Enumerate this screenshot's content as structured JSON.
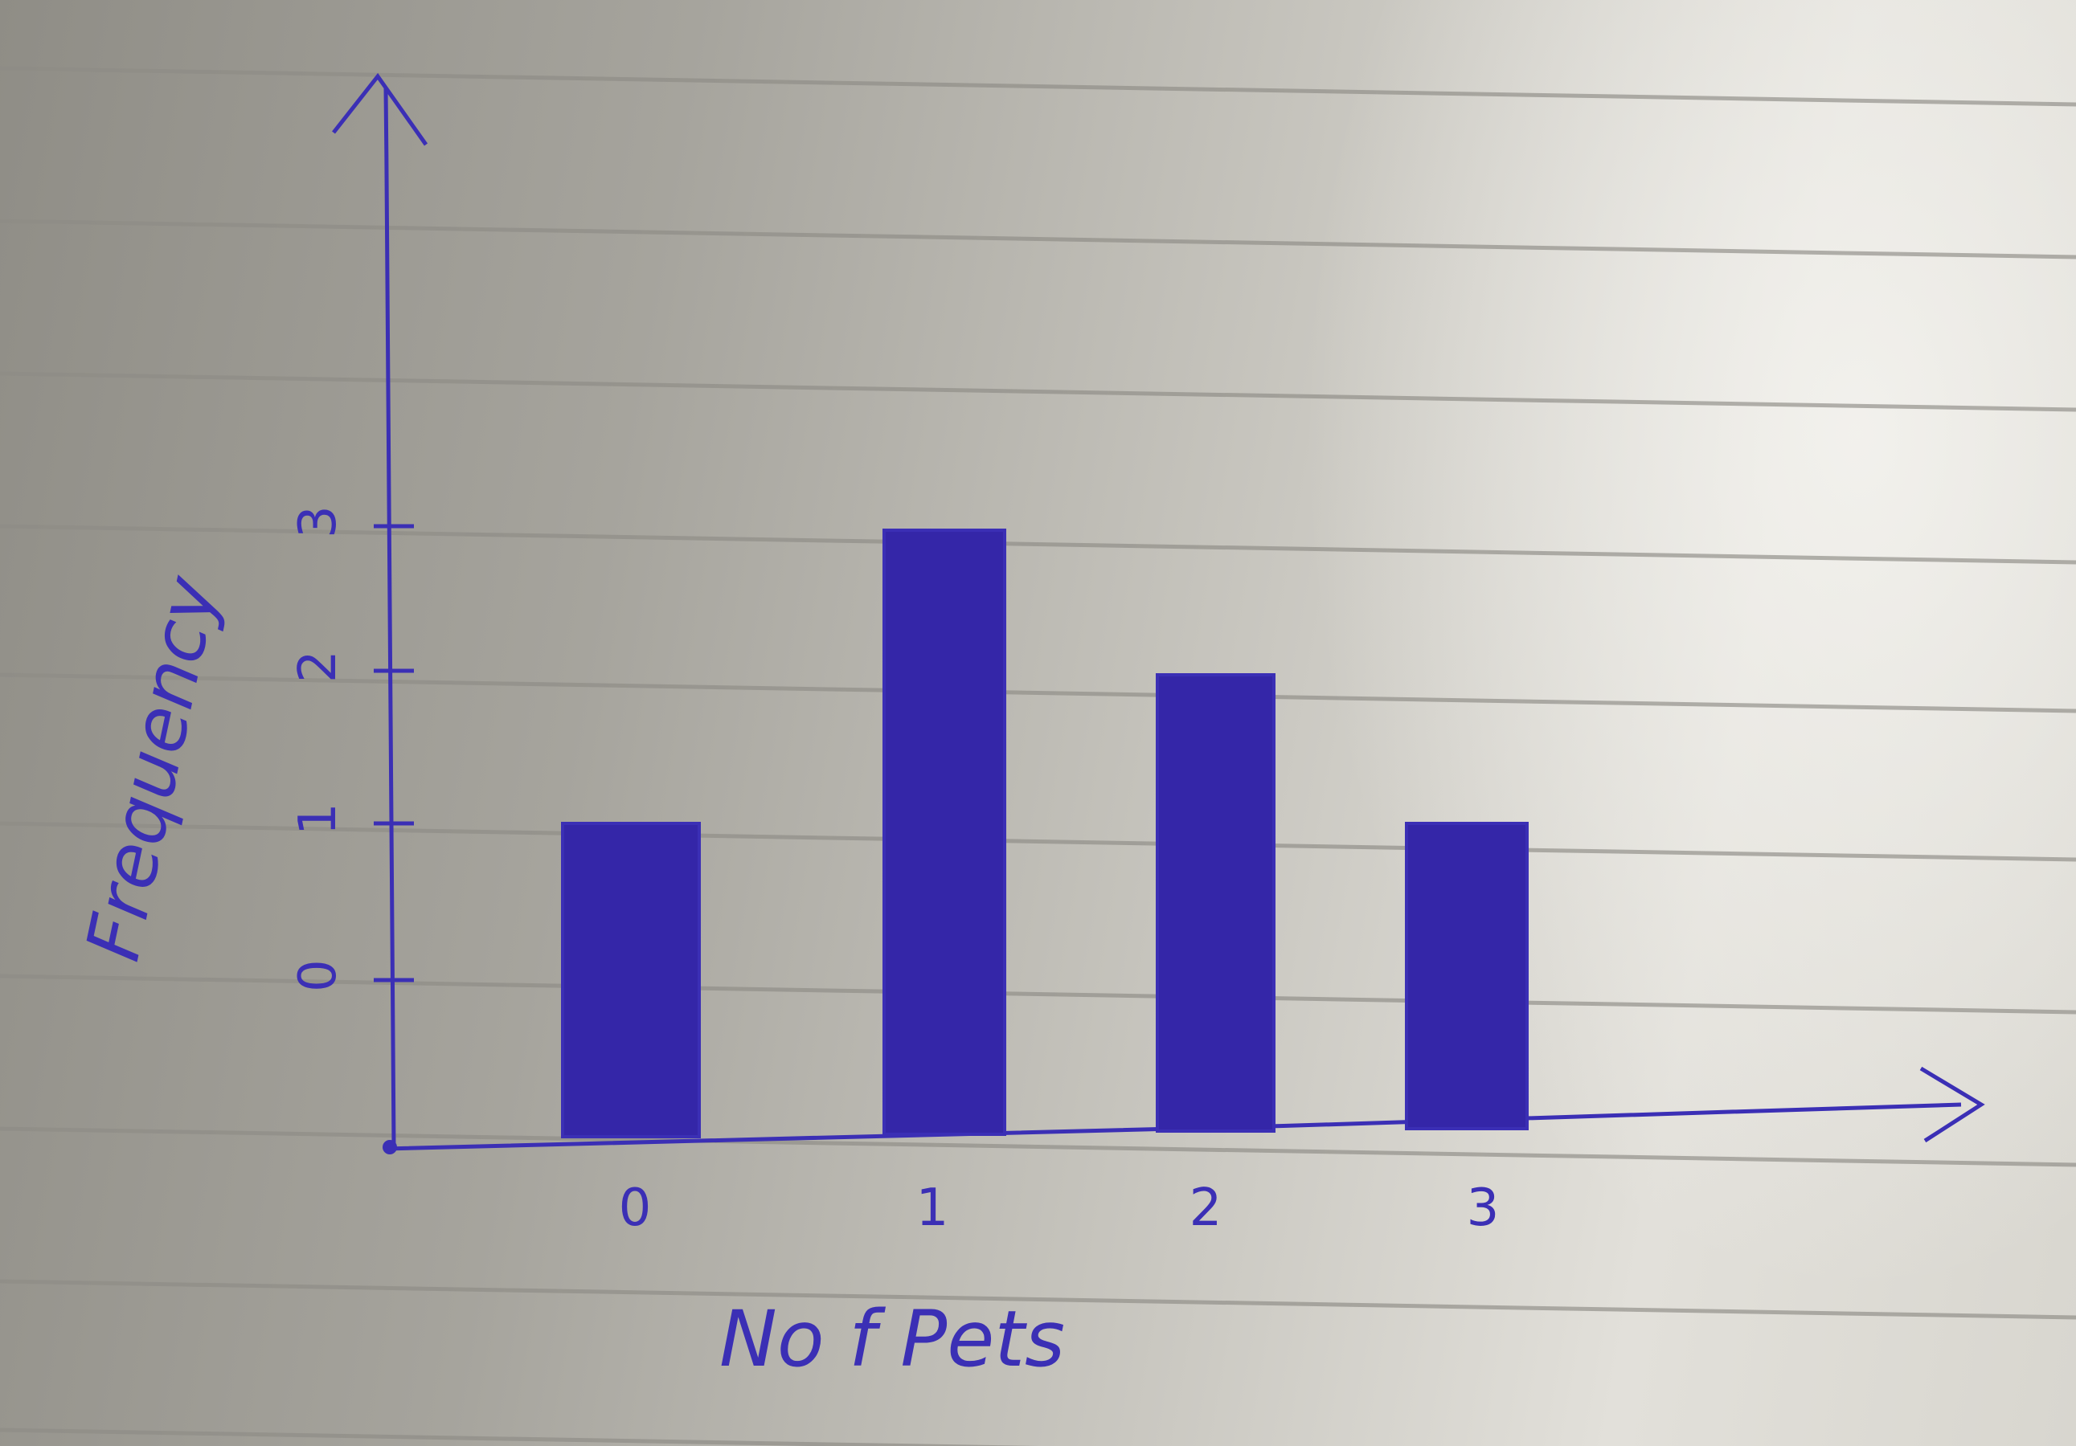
{
  "colors": {
    "ink": "#3b2fb5",
    "bar_fill": "#3426a8",
    "ruled_line": "#8e8c86"
  },
  "chart_data": {
    "type": "bar",
    "categories": [
      "0",
      "1",
      "2",
      "3"
    ],
    "values": [
      1,
      3,
      2,
      1
    ],
    "xlabel": "No f Pets",
    "ylabel": "Frequency",
    "yticks": [
      "0",
      "1",
      "2",
      "3"
    ],
    "ylim": [
      0,
      3
    ],
    "grid": false,
    "legend": "none"
  }
}
